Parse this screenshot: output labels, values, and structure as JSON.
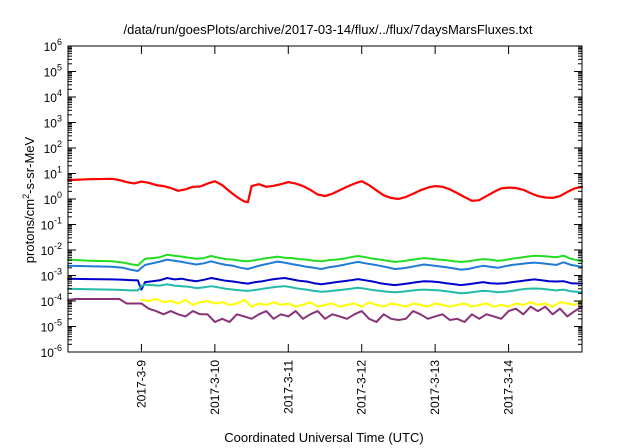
{
  "chart_data": {
    "type": "line",
    "title": "/data/run/goesPlots/archive/2017-03-14/flux/../flux/7daysMarsFluxes.txt",
    "xlabel": "Coordinated Universal Time (UTC)",
    "ylabel": "protons/cm2-s-sr-MeV",
    "ylabel_parts": {
      "main": "protons/cm",
      "sup": "2",
      "rest": "-s-sr-MeV"
    },
    "y_scale": "log",
    "ylim": [
      1e-06,
      1000000.0
    ],
    "xlim": [
      0,
      7
    ],
    "x_unit": "days from 2017-03-08 00:00 UTC",
    "x_ticks": [
      {
        "label": "2017-3-9",
        "x": 1
      },
      {
        "label": "2017-3-10",
        "x": 2
      },
      {
        "label": "2017-3-11",
        "x": 3
      },
      {
        "label": "2017-3-12",
        "x": 4
      },
      {
        "label": "2017-3-13",
        "x": 5
      },
      {
        "label": "2017-3-14",
        "x": 6
      }
    ],
    "y_ticks": [
      {
        "base": "10",
        "exp": "-6",
        "value": 1e-06
      },
      {
        "base": "10",
        "exp": "-5",
        "value": 1e-05
      },
      {
        "base": "10",
        "exp": "-4",
        "value": 0.0001
      },
      {
        "base": "10",
        "exp": "-3",
        "value": 0.001
      },
      {
        "base": "10",
        "exp": "-2",
        "value": 0.01
      },
      {
        "base": "10",
        "exp": "-1",
        "value": 0.1
      },
      {
        "base": "10",
        "exp": "0",
        "value": 1
      },
      {
        "base": "10",
        "exp": "1",
        "value": 10
      },
      {
        "base": "10",
        "exp": "2",
        "value": 100
      },
      {
        "base": "10",
        "exp": "3",
        "value": 1000
      },
      {
        "base": "10",
        "exp": "4",
        "value": 10000
      },
      {
        "base": "10",
        "exp": "5",
        "value": 100000
      },
      {
        "base": "10",
        "exp": "6",
        "value": 1000000
      }
    ],
    "grid": false,
    "legend": "none",
    "series": [
      {
        "color": "#ff0000",
        "x": [
          0,
          0.3,
          0.6,
          0.7,
          0.8,
          0.9,
          1.0,
          1.1,
          1.2,
          1.3,
          1.4,
          1.5,
          1.6,
          1.7,
          1.8,
          1.9,
          2.0,
          2.1,
          2.2,
          2.3,
          2.4,
          2.45,
          2.5,
          2.6,
          2.7,
          2.8,
          2.9,
          3.0,
          3.1,
          3.2,
          3.3,
          3.4,
          3.5,
          3.6,
          3.7,
          3.8,
          3.9,
          4.0,
          4.1,
          4.2,
          4.3,
          4.4,
          4.5,
          4.6,
          4.7,
          4.8,
          4.9,
          5.0,
          5.1,
          5.2,
          5.3,
          5.4,
          5.5,
          5.6,
          5.7,
          5.8,
          5.9,
          6.0,
          6.1,
          6.2,
          6.3,
          6.4,
          6.5,
          6.6,
          6.7,
          6.8,
          6.9,
          7.0
        ],
        "y": [
          5.5,
          6,
          6.2,
          5.5,
          4.6,
          4.1,
          4.8,
          4.3,
          3.5,
          3.2,
          2.7,
          2.1,
          2.4,
          3.0,
          3.1,
          4.0,
          5.0,
          3.5,
          2.0,
          1.2,
          0.8,
          0.75,
          3.2,
          3.8,
          3.0,
          3.3,
          3.8,
          4.6,
          4.0,
          3.2,
          2.3,
          1.5,
          1.3,
          1.6,
          2.2,
          3.0,
          4.0,
          5.0,
          3.5,
          2.2,
          1.4,
          1.1,
          1.0,
          1.2,
          1.6,
          2.2,
          2.8,
          3.2,
          3.0,
          2.4,
          1.7,
          1.2,
          0.85,
          0.9,
          1.3,
          1.9,
          2.6,
          2.8,
          2.7,
          2.3,
          1.7,
          1.3,
          1.15,
          1.1,
          1.3,
          1.9,
          2.6,
          3.0
        ]
      },
      {
        "color": "#22dd22",
        "x": [
          0,
          0.3,
          0.6,
          0.75,
          0.85,
          0.95,
          1.05,
          1.15,
          1.25,
          1.35,
          1.45,
          1.55,
          1.65,
          1.75,
          1.85,
          1.95,
          2.05,
          2.15,
          2.25,
          2.35,
          2.45,
          2.55,
          2.65,
          2.75,
          2.85,
          2.95,
          3.05,
          3.15,
          3.25,
          3.35,
          3.45,
          3.55,
          3.65,
          3.75,
          3.85,
          3.95,
          4.05,
          4.15,
          4.25,
          4.35,
          4.45,
          4.55,
          4.65,
          4.75,
          4.85,
          4.95,
          5.05,
          5.15,
          5.25,
          5.35,
          5.45,
          5.55,
          5.65,
          5.75,
          5.85,
          5.95,
          6.05,
          6.15,
          6.25,
          6.35,
          6.45,
          6.55,
          6.65,
          6.75,
          6.85,
          7.0
        ],
        "y": [
          0.0042,
          0.0038,
          0.0036,
          0.0032,
          0.0028,
          0.0025,
          0.0045,
          0.0048,
          0.0052,
          0.0065,
          0.006,
          0.0055,
          0.005,
          0.0045,
          0.0048,
          0.0058,
          0.005,
          0.0044,
          0.0042,
          0.0038,
          0.0036,
          0.004,
          0.0045,
          0.005,
          0.0055,
          0.005,
          0.0048,
          0.0044,
          0.0042,
          0.0038,
          0.0036,
          0.004,
          0.0042,
          0.0045,
          0.0052,
          0.0058,
          0.0052,
          0.0046,
          0.0042,
          0.0038,
          0.0034,
          0.0036,
          0.004,
          0.0044,
          0.0048,
          0.0045,
          0.0042,
          0.004,
          0.0036,
          0.0034,
          0.0036,
          0.004,
          0.0044,
          0.0042,
          0.0038,
          0.004,
          0.0046,
          0.005,
          0.0055,
          0.006,
          0.0058,
          0.0055,
          0.0052,
          0.006,
          0.0045,
          0.0036
        ]
      },
      {
        "color": "#1e7bd6",
        "x": [
          0,
          0.3,
          0.6,
          0.75,
          0.85,
          0.95,
          1.05,
          1.15,
          1.25,
          1.35,
          1.45,
          1.55,
          1.65,
          1.75,
          1.85,
          1.95,
          2.05,
          2.15,
          2.25,
          2.35,
          2.45,
          2.55,
          2.65,
          2.75,
          2.85,
          2.95,
          3.05,
          3.15,
          3.25,
          3.35,
          3.45,
          3.55,
          3.65,
          3.75,
          3.85,
          3.95,
          4.05,
          4.15,
          4.25,
          4.35,
          4.45,
          4.55,
          4.65,
          4.75,
          4.85,
          4.95,
          5.05,
          5.15,
          5.25,
          5.35,
          5.45,
          5.55,
          5.65,
          5.75,
          5.85,
          5.95,
          6.05,
          6.15,
          6.25,
          6.35,
          6.45,
          6.55,
          6.65,
          6.75,
          6.85,
          7.0
        ],
        "y": [
          0.0024,
          0.0023,
          0.0022,
          0.002,
          0.0017,
          0.0015,
          0.0026,
          0.003,
          0.0035,
          0.0042,
          0.0038,
          0.0034,
          0.003,
          0.0027,
          0.003,
          0.0036,
          0.003,
          0.0026,
          0.0024,
          0.002,
          0.0018,
          0.0022,
          0.0026,
          0.003,
          0.0035,
          0.0032,
          0.0028,
          0.0025,
          0.0022,
          0.002,
          0.0018,
          0.0021,
          0.0023,
          0.0026,
          0.003,
          0.0034,
          0.003,
          0.0027,
          0.0024,
          0.0021,
          0.0018,
          0.0019,
          0.0021,
          0.0024,
          0.0027,
          0.0025,
          0.0023,
          0.0021,
          0.0019,
          0.0017,
          0.0018,
          0.0021,
          0.0024,
          0.0022,
          0.002,
          0.0023,
          0.0026,
          0.0028,
          0.003,
          0.0032,
          0.003,
          0.0028,
          0.0026,
          0.0033,
          0.0026,
          0.0022
        ]
      },
      {
        "color": "#0000cc",
        "x": [
          0,
          0.3,
          0.6,
          0.75,
          0.85,
          0.95,
          1.0,
          1.05,
          1.15,
          1.25,
          1.35,
          1.45,
          1.55,
          1.65,
          1.75,
          1.85,
          1.95,
          2.05,
          2.15,
          2.25,
          2.35,
          2.45,
          2.55,
          2.65,
          2.75,
          2.85,
          2.95,
          3.05,
          3.15,
          3.25,
          3.35,
          3.45,
          3.55,
          3.65,
          3.75,
          3.85,
          3.95,
          4.05,
          4.15,
          4.25,
          4.35,
          4.45,
          4.55,
          4.65,
          4.75,
          4.85,
          4.95,
          5.05,
          5.15,
          5.25,
          5.35,
          5.45,
          5.55,
          5.65,
          5.75,
          5.85,
          5.95,
          6.05,
          6.15,
          6.25,
          6.35,
          6.45,
          6.55,
          6.65,
          6.75,
          6.85,
          7.0
        ],
        "y": [
          0.00075,
          0.00072,
          0.0007,
          0.00068,
          0.00066,
          0.00064,
          0.00028,
          0.00055,
          0.0006,
          0.00065,
          0.0008,
          0.0007,
          0.00075,
          0.00065,
          0.0006,
          0.00068,
          0.0008,
          0.0007,
          0.00062,
          0.00058,
          0.00052,
          0.00048,
          0.00055,
          0.0006,
          0.00068,
          0.00075,
          0.0008,
          0.0007,
          0.00062,
          0.00058,
          0.0005,
          0.00045,
          0.0005,
          0.00055,
          0.0006,
          0.00065,
          0.00072,
          0.00065,
          0.00058,
          0.0005,
          0.00045,
          0.00042,
          0.00045,
          0.0005,
          0.00055,
          0.0006,
          0.00058,
          0.00055,
          0.0005,
          0.00046,
          0.00042,
          0.00045,
          0.0005,
          0.00055,
          0.0005,
          0.00048,
          0.0005,
          0.00055,
          0.0006,
          0.00065,
          0.0007,
          0.00065,
          0.0006,
          0.00058,
          0.0006,
          0.0005,
          0.00048
        ]
      },
      {
        "color": "#22bbaa",
        "x": [
          0,
          0.3,
          0.6,
          0.75,
          0.85,
          0.95,
          1.0,
          1.05,
          1.15,
          1.25,
          1.35,
          1.45,
          1.55,
          1.65,
          1.75,
          1.85,
          1.95,
          2.05,
          2.15,
          2.25,
          2.35,
          2.45,
          2.55,
          2.65,
          2.75,
          2.85,
          2.95,
          3.05,
          3.15,
          3.25,
          3.35,
          3.45,
          3.55,
          3.65,
          3.75,
          3.85,
          3.95,
          4.05,
          4.15,
          4.25,
          4.35,
          4.45,
          4.55,
          4.65,
          4.75,
          4.85,
          4.95,
          5.05,
          5.15,
          5.25,
          5.35,
          5.45,
          5.55,
          5.65,
          5.75,
          5.85,
          5.95,
          6.05,
          6.15,
          6.25,
          6.35,
          6.45,
          6.55,
          6.65,
          6.75,
          6.85,
          7.0
        ],
        "y": [
          0.0003,
          0.00029,
          0.00028,
          0.00027,
          0.00026,
          0.00026,
          0.00038,
          0.00044,
          0.00042,
          0.0004,
          0.00045,
          0.0004,
          0.00038,
          0.00036,
          0.00032,
          0.00034,
          0.00038,
          0.00034,
          0.0003,
          0.00028,
          0.00026,
          0.00025,
          0.00027,
          0.0003,
          0.00033,
          0.00036,
          0.00038,
          0.00034,
          0.0003,
          0.00028,
          0.00025,
          0.00023,
          0.00024,
          0.00026,
          0.00028,
          0.0003,
          0.00033,
          0.0003,
          0.00027,
          0.00025,
          0.00023,
          0.00022,
          0.00023,
          0.00025,
          0.00027,
          0.00028,
          0.00027,
          0.00026,
          0.00024,
          0.00022,
          0.0002,
          0.00021,
          0.00023,
          0.00025,
          0.00024,
          0.00022,
          0.00023,
          0.00025,
          0.00028,
          0.0003,
          0.00031,
          0.0003,
          0.00028,
          0.00026,
          0.00028,
          0.00024,
          0.00022
        ]
      },
      {
        "color": "#ffff00",
        "x": [
          1.0,
          1.1,
          1.2,
          1.3,
          1.4,
          1.5,
          1.6,
          1.7,
          1.8,
          1.9,
          2.0,
          2.1,
          2.2,
          2.3,
          2.4,
          2.5,
          2.6,
          2.7,
          2.8,
          2.9,
          3.0,
          3.1,
          3.2,
          3.3,
          3.4,
          3.5,
          3.6,
          3.7,
          3.8,
          3.9,
          4.0,
          4.1,
          4.2,
          4.3,
          4.4,
          4.5,
          4.6,
          4.7,
          4.8,
          4.9,
          5.0,
          5.1,
          5.2,
          5.3,
          5.4,
          5.5,
          5.6,
          5.7,
          5.8,
          5.9,
          6.0,
          6.1,
          6.2,
          6.3,
          6.4,
          6.5,
          6.6,
          6.7,
          6.8,
          6.9,
          7.0
        ],
        "y": [
          0.00011,
          0.0001,
          0.00012,
          9e-05,
          0.0001,
          8e-05,
          0.00011,
          7e-05,
          9e-05,
          0.0001,
          8e-05,
          9e-05,
          7e-05,
          8e-05,
          0.00011,
          6e-05,
          8e-05,
          7e-05,
          9e-05,
          7e-05,
          8e-05,
          6e-05,
          7e-05,
          9e-05,
          6e-05,
          7e-05,
          8e-05,
          6e-05,
          7e-05,
          8e-05,
          6e-05,
          9e-05,
          7e-05,
          6e-05,
          8e-05,
          7e-05,
          6e-05,
          8e-05,
          7e-05,
          6e-05,
          8e-05,
          7e-05,
          6e-05,
          7e-05,
          8e-05,
          6e-05,
          7e-05,
          8e-05,
          6e-05,
          7e-05,
          6e-05,
          8e-05,
          7e-05,
          9e-05,
          7e-05,
          8e-05,
          6e-05,
          9e-05,
          8e-05,
          7e-05,
          0.0001
        ]
      },
      {
        "color": "#883377",
        "x": [
          0,
          0.1,
          0.2,
          0.3,
          0.4,
          0.5,
          0.6,
          0.7,
          0.8,
          0.9,
          1.0,
          1.1,
          1.2,
          1.3,
          1.4,
          1.5,
          1.6,
          1.7,
          1.8,
          1.9,
          2.0,
          2.1,
          2.2,
          2.3,
          2.4,
          2.5,
          2.6,
          2.7,
          2.8,
          2.9,
          3.0,
          3.1,
          3.2,
          3.3,
          3.4,
          3.5,
          3.6,
          3.7,
          3.8,
          3.9,
          4.0,
          4.1,
          4.2,
          4.3,
          4.4,
          4.5,
          4.6,
          4.7,
          4.8,
          4.9,
          5.0,
          5.1,
          5.2,
          5.3,
          5.4,
          5.5,
          5.6,
          5.7,
          5.8,
          5.9,
          6.0,
          6.1,
          6.2,
          6.3,
          6.4,
          6.5,
          6.6,
          6.7,
          6.8,
          6.9,
          7.0
        ],
        "y": [
          0.00011,
          0.00012,
          0.00012,
          0.00012,
          0.00012,
          0.00012,
          0.00012,
          0.00012,
          8e-05,
          8e-05,
          8e-05,
          5e-05,
          4e-05,
          3e-05,
          4e-05,
          3e-05,
          2.5e-05,
          4e-05,
          3e-05,
          3e-05,
          1.5e-05,
          2e-05,
          1.5e-05,
          3e-05,
          2.5e-05,
          2e-05,
          3e-05,
          4e-05,
          2e-05,
          3e-05,
          2.5e-05,
          4e-05,
          2e-05,
          3e-05,
          4e-05,
          2e-05,
          3e-05,
          2.5e-05,
          2e-05,
          3e-05,
          4e-05,
          2e-05,
          1.5e-05,
          3e-05,
          2e-05,
          1.8e-05,
          2e-05,
          4e-05,
          3e-05,
          2e-05,
          2.5e-05,
          3e-05,
          1.8e-05,
          2e-05,
          1.5e-05,
          3e-05,
          2e-05,
          3e-05,
          2.5e-05,
          2e-05,
          4e-05,
          5e-05,
          3e-05,
          6e-05,
          4e-05,
          6e-05,
          3e-05,
          5e-05,
          2.5e-05,
          4e-05,
          6e-05
        ]
      }
    ]
  }
}
